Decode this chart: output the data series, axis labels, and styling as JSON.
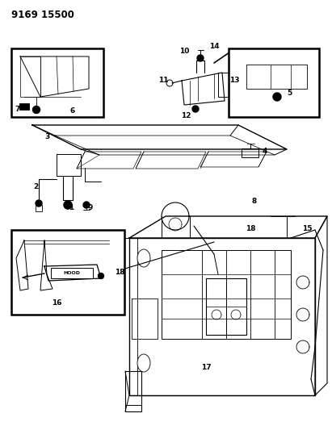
{
  "title": "9169 15500",
  "background_color": "#ffffff",
  "line_color": "#000000",
  "fig_width": 4.11,
  "fig_height": 5.33,
  "dpi": 100,
  "title_fontsize": 8.5,
  "title_fontweight": "bold"
}
